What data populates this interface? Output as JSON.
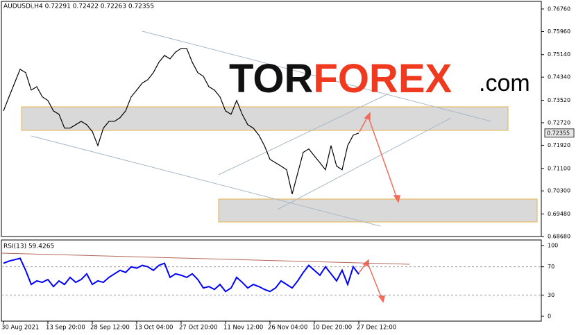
{
  "chart_data": [
    {
      "type": "line",
      "title": "AUDUSDi,H4  0.72291 0.72422 0.72263 0.72355",
      "color": "#000000",
      "categories": [
        "30 Aug 2021",
        null,
        null,
        null,
        null,
        null,
        null,
        null,
        "13 Sep 20:00",
        null,
        null,
        null,
        null,
        null,
        null,
        null,
        "28 Sep 12:00",
        null,
        null,
        null,
        null,
        null,
        null,
        null,
        "13 Oct 04:00",
        null,
        null,
        null,
        null,
        null,
        null,
        null,
        "27 Oct 20:00",
        null,
        null,
        null,
        null,
        null,
        null,
        null,
        "11 Nov 12:00",
        null,
        null,
        null,
        null,
        null,
        null,
        null,
        "26 Nov 04:00",
        null,
        null,
        null,
        null,
        null,
        null,
        null,
        "10 Dec 20:00",
        null,
        null,
        null,
        null,
        null,
        null,
        null,
        "27 Dec 12:00"
      ],
      "values": [
        0.7314,
        0.7364,
        0.7413,
        0.7462,
        0.745,
        0.7388,
        0.74,
        0.7364,
        0.7351,
        0.7314,
        0.7302,
        0.7253,
        0.7253,
        0.7265,
        0.7277,
        0.7265,
        0.7241,
        0.7191,
        0.7253,
        0.7277,
        0.7277,
        0.729,
        0.7314,
        0.7364,
        0.7388,
        0.7413,
        0.7425,
        0.745,
        0.7487,
        0.7511,
        0.7499,
        0.7523,
        0.7536,
        0.7536,
        0.7487,
        0.745,
        0.7437,
        0.74,
        0.7388,
        0.7364,
        0.7314,
        0.7302,
        0.7351,
        0.7302,
        0.7265,
        0.7253,
        0.7228,
        0.7191,
        0.7142,
        0.713,
        0.7118,
        0.7105,
        0.7019,
        0.7093,
        0.7167,
        0.7179,
        0.7154,
        0.713,
        0.7105,
        0.7191,
        0.7118,
        0.7105,
        0.7191,
        0.7228,
        0.72355
      ],
      "last_price": {
        "value": 0.72355,
        "label": "0.72355"
      },
      "ylim": [
        0.6868,
        0.7703
      ],
      "yticks": [
        {
          "value": 0.7676,
          "label": "0.76760"
        },
        {
          "value": 0.7596,
          "label": "0.75960"
        },
        {
          "value": 0.7514,
          "label": "0.75140"
        },
        {
          "value": 0.7434,
          "label": "0.74340"
        },
        {
          "value": 0.7352,
          "label": "0.73520"
        },
        {
          "value": 0.7272,
          "label": "0.72720"
        },
        {
          "value": 0.7192,
          "label": "0.71920"
        },
        {
          "value": 0.711,
          "label": "0.71100"
        },
        {
          "value": 0.703,
          "label": "0.70300"
        },
        {
          "value": 0.6948,
          "label": "0.69480"
        },
        {
          "value": 0.6868,
          "label": "0.68680"
        }
      ]
    },
    {
      "type": "line",
      "title": "RSI(13) 59.4265",
      "color": "#0000ff",
      "values": [
        75,
        78,
        80,
        82,
        65,
        45,
        50,
        48,
        52,
        42,
        50,
        45,
        55,
        48,
        52,
        60,
        45,
        50,
        48,
        55,
        60,
        65,
        62,
        70,
        68,
        72,
        70,
        65,
        72,
        75,
        55,
        60,
        58,
        55,
        60,
        52,
        40,
        42,
        38,
        45,
        35,
        40,
        55,
        48,
        40,
        45,
        42,
        38,
        35,
        40,
        50,
        45,
        40,
        50,
        62,
        72,
        65,
        58,
        70,
        60,
        50,
        65,
        45,
        70,
        59.4265
      ],
      "ylim": [
        -5.9,
        106.9
      ],
      "yticks": [
        0,
        30,
        70,
        100
      ],
      "levels": [
        30,
        70
      ]
    }
  ],
  "logo": {
    "part1": "TOR",
    "part2": "FOREX",
    "part3": ".com"
  }
}
